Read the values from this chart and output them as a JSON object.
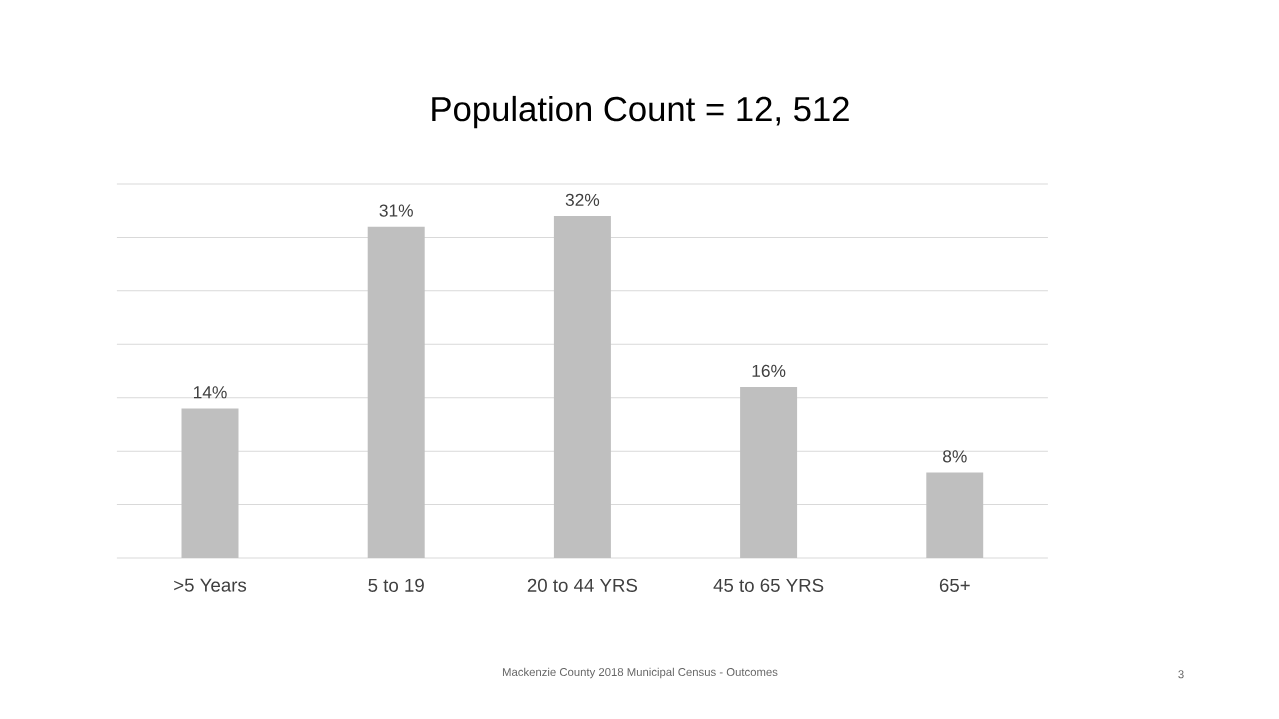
{
  "chart_data": {
    "type": "bar",
    "title": "Population Count = 12, 512",
    "categories": [
      ">5 Years",
      "5 to 19",
      "20 to 44 YRS",
      "45 to 65 YRS",
      "65+"
    ],
    "values": [
      14,
      31,
      32,
      16,
      8
    ],
    "value_labels": [
      "14%",
      "31%",
      "32%",
      "16%",
      "8%"
    ],
    "color": "#bfbfbf",
    "ylim": [
      0,
      35
    ],
    "yticks": [
      0,
      5,
      10,
      15,
      20,
      25,
      30,
      35
    ],
    "grid": "y",
    "tick_labels": "x",
    "annotations": [
      "Mackenzie County 2018 Municipal Census - Outcomes",
      "3"
    ]
  }
}
